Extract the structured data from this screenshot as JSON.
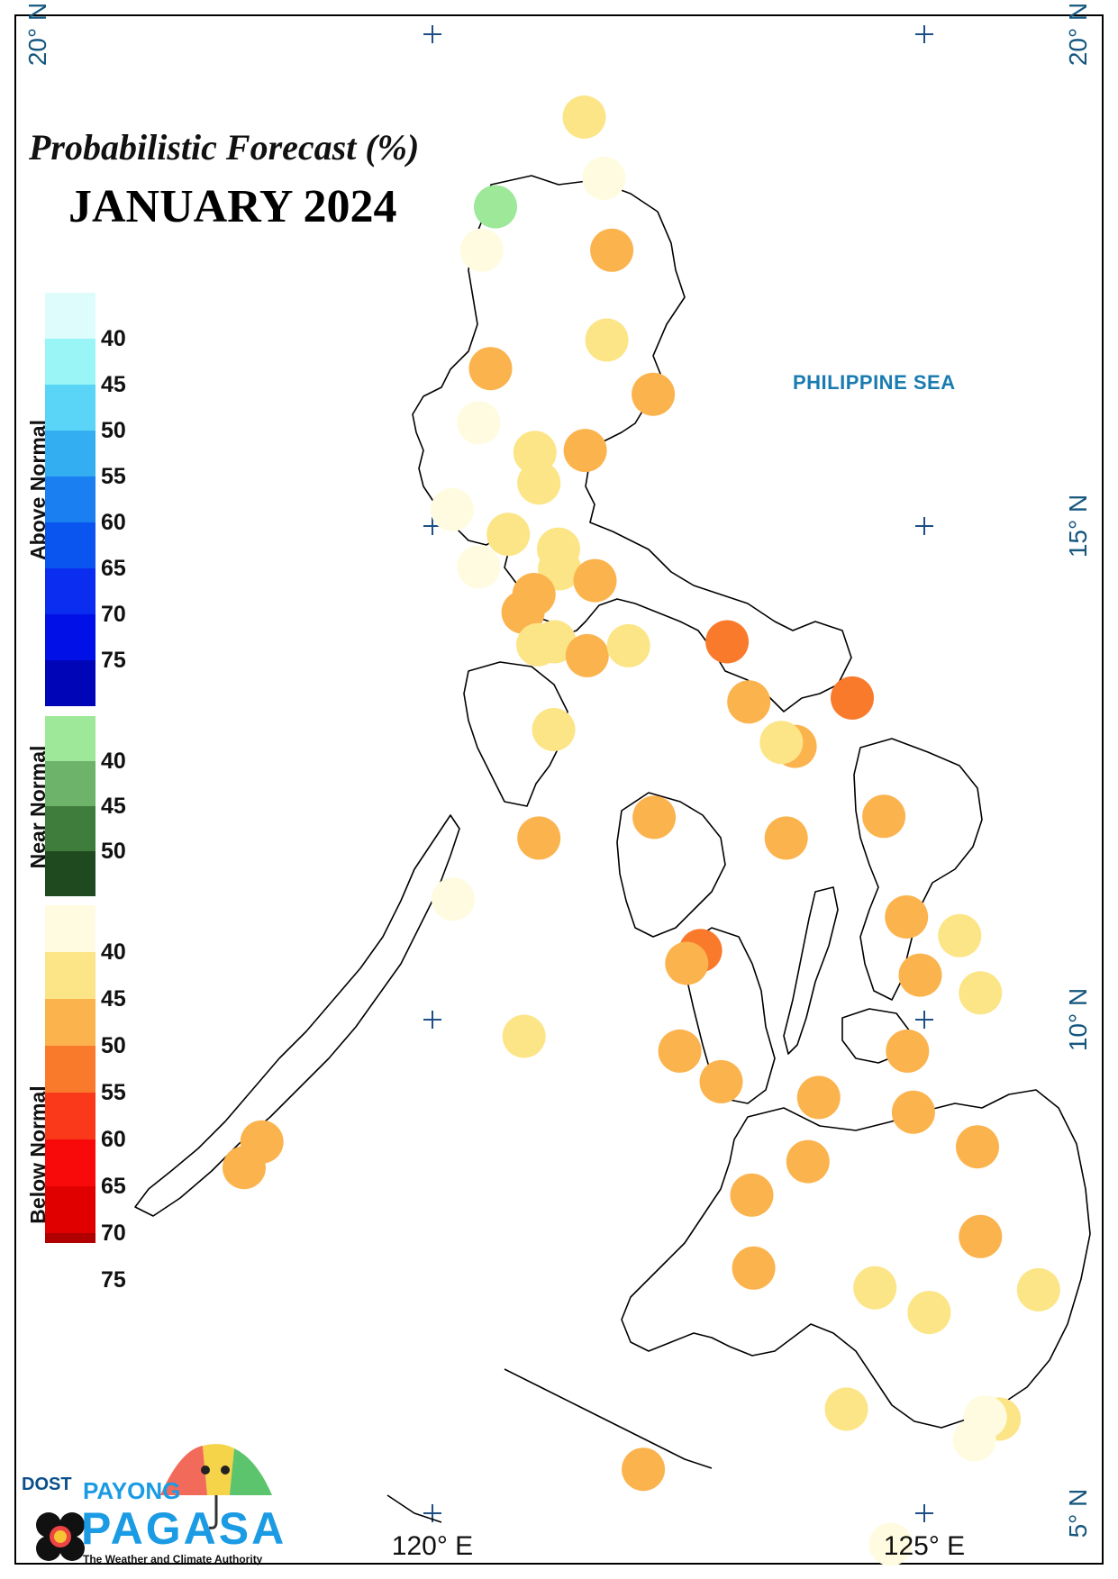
{
  "title": "Probabilistic Forecast (%)",
  "subtitle": "JANUARY 2024",
  "sea_label": "PHILIPPINE SEA",
  "lat_labels": [
    "20° N",
    "20° N",
    "15° N",
    "10° N",
    "5° N"
  ],
  "lon_labels": [
    "120° E",
    "125° E"
  ],
  "legend": {
    "above": {
      "title": "Above Normal",
      "ticks": [
        "40",
        "45",
        "50",
        "55",
        "60",
        "65",
        "70",
        "75"
      ],
      "colors": [
        "#dffcfd",
        "#9af5f7",
        "#5ad5f7",
        "#33aef0",
        "#1a7ff0",
        "#0a55f0",
        "#0a2df0",
        "#0010e6",
        "#0006b8"
      ]
    },
    "near": {
      "title": "Near Normal",
      "ticks": [
        "40",
        "45",
        "50"
      ],
      "colors": [
        "#9ee89a",
        "#6db36a",
        "#3f7d3d",
        "#1f4a1f"
      ]
    },
    "below": {
      "title": "Below Normal",
      "ticks": [
        "40",
        "45",
        "50",
        "55",
        "60",
        "65",
        "70",
        "75"
      ],
      "colors": [
        "#fffbe0",
        "#fce587",
        "#fbb34e",
        "#fa7a2c",
        "#f9391a",
        "#f80a0a",
        "#e00000",
        "#b00000",
        "#6a0000"
      ]
    }
  },
  "logo": {
    "dost": "DOST",
    "payong": "PAYONG",
    "pagasa": "PAGASA",
    "tagline": "The Weather and Climate Authority"
  },
  "chart_data": {
    "type": "scatter",
    "x_unit": "longitude °E",
    "y_unit": "latitude °N",
    "xlim": [
      115.6,
      127.9
    ],
    "ylim": [
      4.5,
      20.3
    ],
    "points": [
      {
        "lon": 121.54,
        "lat": 19.16,
        "category": "below",
        "level": "40-45"
      },
      {
        "lon": 121.74,
        "lat": 18.54,
        "category": "below",
        "level": "<40"
      },
      {
        "lon": 120.64,
        "lat": 18.25,
        "category": "near",
        "level": "<40"
      },
      {
        "lon": 120.5,
        "lat": 17.81,
        "category": "below",
        "level": "<40"
      },
      {
        "lon": 121.82,
        "lat": 17.81,
        "category": "below",
        "level": "45-50"
      },
      {
        "lon": 121.77,
        "lat": 16.9,
        "category": "below",
        "level": "40-45"
      },
      {
        "lon": 120.59,
        "lat": 16.61,
        "category": "below",
        "level": "45-50"
      },
      {
        "lon": 122.24,
        "lat": 16.35,
        "category": "below",
        "level": "45-50"
      },
      {
        "lon": 120.47,
        "lat": 16.06,
        "category": "below",
        "level": "<40"
      },
      {
        "lon": 121.04,
        "lat": 15.76,
        "category": "below",
        "level": "40-45"
      },
      {
        "lon": 121.55,
        "lat": 15.78,
        "category": "below",
        "level": "45-50"
      },
      {
        "lon": 121.08,
        "lat": 15.45,
        "category": "below",
        "level": "40-45"
      },
      {
        "lon": 120.2,
        "lat": 15.18,
        "category": "below",
        "level": "<40"
      },
      {
        "lon": 120.77,
        "lat": 14.93,
        "category": "below",
        "level": "40-45"
      },
      {
        "lon": 121.28,
        "lat": 14.78,
        "category": "below",
        "level": "40-45"
      },
      {
        "lon": 120.47,
        "lat": 14.6,
        "category": "below",
        "level": "<40"
      },
      {
        "lon": 121.29,
        "lat": 14.58,
        "category": "below",
        "level": "40-45"
      },
      {
        "lon": 121.65,
        "lat": 14.46,
        "category": "below",
        "level": "45-50"
      },
      {
        "lon": 121.03,
        "lat": 14.32,
        "category": "below",
        "level": "45-50"
      },
      {
        "lon": 120.92,
        "lat": 14.14,
        "category": "below",
        "level": "45-50"
      },
      {
        "lon": 121.07,
        "lat": 13.81,
        "category": "below",
        "level": "40-45"
      },
      {
        "lon": 121.24,
        "lat": 13.84,
        "category": "below",
        "level": "40-45"
      },
      {
        "lon": 121.57,
        "lat": 13.7,
        "category": "below",
        "level": "45-50"
      },
      {
        "lon": 121.99,
        "lat": 13.8,
        "category": "below",
        "level": "40-45"
      },
      {
        "lon": 122.99,
        "lat": 13.84,
        "category": "below",
        "level": "50-55"
      },
      {
        "lon": 123.21,
        "lat": 13.23,
        "category": "below",
        "level": "45-50"
      },
      {
        "lon": 124.26,
        "lat": 13.27,
        "category": "below",
        "level": "50-55"
      },
      {
        "lon": 123.68,
        "lat": 12.78,
        "category": "below",
        "level": "45-50"
      },
      {
        "lon": 123.54,
        "lat": 12.82,
        "category": "below",
        "level": "40-45"
      },
      {
        "lon": 121.23,
        "lat": 12.95,
        "category": "below",
        "level": "40-45"
      },
      {
        "lon": 122.25,
        "lat": 12.06,
        "category": "below",
        "level": "45-50"
      },
      {
        "lon": 123.59,
        "lat": 11.85,
        "category": "below",
        "level": "45-50"
      },
      {
        "lon": 124.58,
        "lat": 12.07,
        "category": "below",
        "level": "45-50"
      },
      {
        "lon": 121.08,
        "lat": 11.85,
        "category": "below",
        "level": "45-50"
      },
      {
        "lon": 120.21,
        "lat": 11.23,
        "category": "below",
        "level": "<40"
      },
      {
        "lon": 124.81,
        "lat": 11.05,
        "category": "below",
        "level": "45-50"
      },
      {
        "lon": 125.35,
        "lat": 10.86,
        "category": "below",
        "level": "40-45"
      },
      {
        "lon": 122.72,
        "lat": 10.71,
        "category": "below",
        "level": "50-55"
      },
      {
        "lon": 122.58,
        "lat": 10.58,
        "category": "below",
        "level": "45-50"
      },
      {
        "lon": 124.95,
        "lat": 10.46,
        "category": "below",
        "level": "45-50"
      },
      {
        "lon": 125.56,
        "lat": 10.28,
        "category": "below",
        "level": "40-45"
      },
      {
        "lon": 120.93,
        "lat": 9.84,
        "category": "below",
        "level": "40-45"
      },
      {
        "lon": 122.51,
        "lat": 9.69,
        "category": "below",
        "level": "45-50"
      },
      {
        "lon": 124.82,
        "lat": 9.69,
        "category": "below",
        "level": "45-50"
      },
      {
        "lon": 122.93,
        "lat": 9.38,
        "category": "below",
        "level": "45-50"
      },
      {
        "lon": 123.92,
        "lat": 9.22,
        "category": "below",
        "level": "45-50"
      },
      {
        "lon": 124.88,
        "lat": 9.07,
        "category": "below",
        "level": "45-50"
      },
      {
        "lon": 118.27,
        "lat": 8.77,
        "category": "below",
        "level": "45-50"
      },
      {
        "lon": 125.53,
        "lat": 8.72,
        "category": "below",
        "level": "45-50"
      },
      {
        "lon": 118.09,
        "lat": 8.51,
        "category": "below",
        "level": "45-50"
      },
      {
        "lon": 123.81,
        "lat": 8.57,
        "category": "below",
        "level": "45-50"
      },
      {
        "lon": 123.24,
        "lat": 8.23,
        "category": "below",
        "level": "45-50"
      },
      {
        "lon": 125.56,
        "lat": 7.81,
        "category": "below",
        "level": "45-50"
      },
      {
        "lon": 123.26,
        "lat": 7.49,
        "category": "below",
        "level": "45-50"
      },
      {
        "lon": 124.49,
        "lat": 7.29,
        "category": "below",
        "level": "40-45"
      },
      {
        "lon": 126.15,
        "lat": 7.27,
        "category": "below",
        "level": "40-45"
      },
      {
        "lon": 125.04,
        "lat": 7.04,
        "category": "below",
        "level": "40-45"
      },
      {
        "lon": 124.2,
        "lat": 6.06,
        "category": "below",
        "level": "40-45"
      },
      {
        "lon": 125.75,
        "lat": 5.96,
        "category": "below",
        "level": "40-45"
      },
      {
        "lon": 125.61,
        "lat": 5.98,
        "category": "below",
        "level": "<40"
      },
      {
        "lon": 125.5,
        "lat": 5.75,
        "category": "below",
        "level": "<40"
      },
      {
        "lon": 122.14,
        "lat": 5.45,
        "category": "below",
        "level": "45-50"
      },
      {
        "lon": 124.65,
        "lat": 4.69,
        "category": "below",
        "level": "<40"
      }
    ]
  }
}
